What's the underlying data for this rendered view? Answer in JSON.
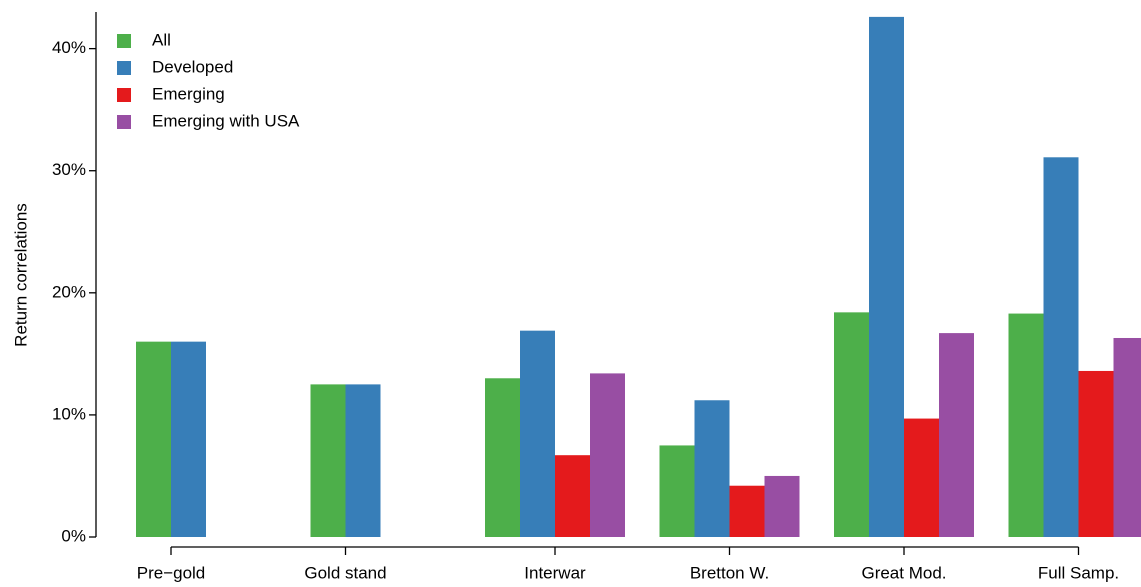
{
  "chart_data": {
    "type": "bar",
    "y_label": "Return correlations",
    "categories": [
      "Pre−gold",
      "Gold stand",
      "Interwar",
      "Bretton W.",
      "Great Mod.",
      "Full Samp."
    ],
    "series": [
      {
        "name": "All",
        "color": "#4daf4a",
        "values": [
          16.0,
          12.5,
          13.0,
          7.5,
          18.4,
          18.3
        ]
      },
      {
        "name": "Developed",
        "color": "#377eb8",
        "values": [
          16.0,
          12.5,
          16.9,
          11.2,
          42.6,
          31.1
        ]
      },
      {
        "name": "Emerging",
        "color": "#e41a1c",
        "values": [
          null,
          null,
          6.7,
          4.2,
          9.7,
          13.6
        ]
      },
      {
        "name": "Emerging with USA",
        "color": "#984ea3",
        "values": [
          null,
          null,
          13.4,
          5.0,
          16.7,
          16.3
        ]
      }
    ],
    "ylim": [
      0,
      43
    ],
    "yticks": [
      {
        "value": 0,
        "label": "0%"
      },
      {
        "value": 10,
        "label": "10%"
      },
      {
        "value": 20,
        "label": "20%"
      },
      {
        "value": 30,
        "label": "30%"
      },
      {
        "value": 40,
        "label": "40%"
      }
    ],
    "legend": "top-left"
  }
}
